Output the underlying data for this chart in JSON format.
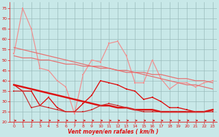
{
  "x": [
    0,
    1,
    2,
    3,
    4,
    5,
    6,
    7,
    8,
    9,
    10,
    11,
    12,
    13,
    14,
    15,
    16,
    17,
    18,
    19,
    20,
    21,
    22,
    23
  ],
  "line1_gust_max": [
    53,
    75,
    65,
    46,
    45,
    40,
    37,
    24,
    43,
    50,
    49,
    58,
    59,
    52,
    39,
    39,
    50,
    41,
    36,
    39,
    39,
    37,
    39,
    40
  ],
  "line2_trend_high": [
    56,
    55,
    54,
    53,
    52,
    51,
    50,
    49,
    48,
    47,
    47,
    46,
    45,
    44,
    44,
    43,
    42,
    41,
    40,
    39,
    38,
    38,
    37,
    36
  ],
  "line3_trend_mid": [
    52,
    51,
    51,
    50,
    50,
    49,
    48,
    48,
    47,
    47,
    46,
    46,
    45,
    45,
    44,
    44,
    43,
    43,
    42,
    41,
    41,
    40,
    40,
    39
  ],
  "line4_mean_var": [
    38,
    35,
    35,
    28,
    32,
    27,
    25,
    25,
    29,
    33,
    40,
    39,
    38,
    36,
    35,
    31,
    32,
    30,
    27,
    27,
    26,
    25,
    25,
    26
  ],
  "line5_trend_low": [
    38,
    37,
    36,
    35,
    34,
    33,
    32,
    31,
    30,
    29,
    28,
    28,
    27,
    27,
    26,
    26,
    26,
    25,
    25,
    25,
    25,
    25,
    25,
    26
  ],
  "line6_mean_low": [
    35,
    35,
    27,
    28,
    27,
    26,
    25,
    25,
    25,
    26,
    28,
    29,
    28,
    27,
    26,
    25,
    25,
    25,
    25,
    25,
    25,
    25,
    25,
    25
  ],
  "color_light": "#f09090",
  "color_dark": "#dd1111",
  "color_trend": "#e87070",
  "color_mid_dark": "#cc3333",
  "background": "#c8e8e8",
  "grid_color": "#99bbbb",
  "xlabel": "Vent moyen/en rafales ( km/h )",
  "ylim": [
    20,
    78
  ],
  "xlim": [
    -0.5,
    23.5
  ],
  "yticks": [
    20,
    25,
    30,
    35,
    40,
    45,
    50,
    55,
    60,
    65,
    70,
    75
  ],
  "xticks": [
    0,
    1,
    2,
    3,
    4,
    5,
    6,
    7,
    8,
    9,
    10,
    11,
    12,
    13,
    14,
    15,
    16,
    17,
    18,
    19,
    20,
    21,
    22,
    23
  ]
}
